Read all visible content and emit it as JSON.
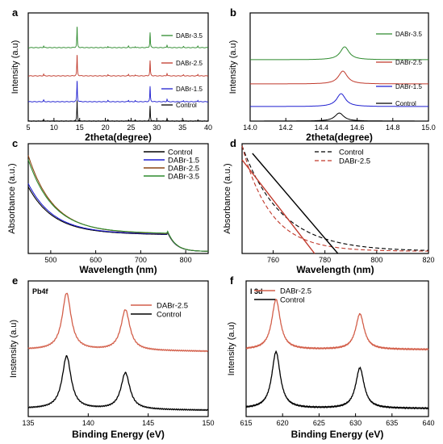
{
  "chart_data": [
    {
      "panel": "a",
      "type": "line",
      "xlabel": "2theta(degree)",
      "ylabel": "Intensity (a.u)",
      "xlim": [
        5,
        40
      ],
      "xticks": [
        5,
        10,
        15,
        20,
        25,
        30,
        35,
        40
      ],
      "peaks": [
        8.0,
        14.5,
        20.5,
        24.5,
        25.8,
        28.7,
        32.0,
        35.2,
        38.0
      ],
      "series": [
        {
          "name": "DABr-3.5",
          "color": "#2e8b2e"
        },
        {
          "name": "DABr-2.5",
          "color": "#c0392b"
        },
        {
          "name": "DABr-1.5",
          "color": "#1f1fd0"
        },
        {
          "name": "Control",
          "color": "#000000"
        }
      ]
    },
    {
      "panel": "b",
      "type": "line",
      "xlabel": "2theta(degree)",
      "ylabel": "Intensity (a.u)",
      "xlim": [
        14.0,
        15.0
      ],
      "xticks": [
        "14.0",
        "14.2",
        "14.4",
        "14.6",
        "14.8",
        "15.0"
      ],
      "series": [
        {
          "name": "DABr-3.5",
          "color": "#2e8b2e",
          "peak": 14.53
        },
        {
          "name": "DABr-2.5",
          "color": "#c0392b",
          "peak": 14.52
        },
        {
          "name": "DABr-1.5",
          "color": "#1f1fd0",
          "peak": 14.51
        },
        {
          "name": "Control",
          "color": "#000000",
          "peak": 14.5
        }
      ]
    },
    {
      "panel": "c",
      "type": "line",
      "xlabel": "Wavelength (nm)",
      "ylabel": "Absorbance (a.u.)",
      "xlim": [
        450,
        850
      ],
      "xticks": [
        500,
        600,
        700,
        800
      ],
      "series": [
        {
          "name": "Control",
          "color": "#000000",
          "start": 0.62
        },
        {
          "name": "DABr-1.5",
          "color": "#1f1fd0",
          "start": 0.65
        },
        {
          "name": "DABr-2.5",
          "color": "#8b4513",
          "start": 0.92
        },
        {
          "name": "DABr-3.5",
          "color": "#2e8b2e",
          "start": 0.88
        }
      ]
    },
    {
      "panel": "d",
      "type": "line",
      "xlabel": "Wavelength (nm)",
      "ylabel": "Absorbance (a.u.)",
      "xlim": [
        748,
        820
      ],
      "xticks": [
        760,
        780,
        800,
        820
      ],
      "series": [
        {
          "name": "Control",
          "color": "#000000",
          "dash": true
        },
        {
          "name": "DABr-2.5",
          "color": "#c0392b",
          "dash": true
        }
      ],
      "tangents": [
        {
          "color": "#000000",
          "intercept": 785
        },
        {
          "color": "#c0392b",
          "intercept": 776
        }
      ]
    },
    {
      "panel": "e",
      "type": "line",
      "annotation": "Pb4f",
      "xlabel": "Binding Energy (eV)",
      "ylabel": "Instensity (a.u)",
      "xlim": [
        135,
        150
      ],
      "xticks": [
        135,
        140,
        145,
        150
      ],
      "peaks": [
        138.2,
        143.1
      ],
      "series": [
        {
          "name": "DABr-2.5",
          "color": "#d35f4a"
        },
        {
          "name": "Control",
          "color": "#000000"
        }
      ]
    },
    {
      "panel": "f",
      "type": "line",
      "annotation": "I 3d",
      "xlabel": "Binding Energy (eV)",
      "ylabel": "Intensity (a.u)",
      "xlim": [
        615,
        640
      ],
      "xticks": [
        615,
        620,
        625,
        630,
        635,
        640
      ],
      "peaks": [
        619.1,
        630.6
      ],
      "series": [
        {
          "name": "DABr-2.5",
          "color": "#d35f4a"
        },
        {
          "name": "Control",
          "color": "#000000"
        }
      ]
    }
  ]
}
